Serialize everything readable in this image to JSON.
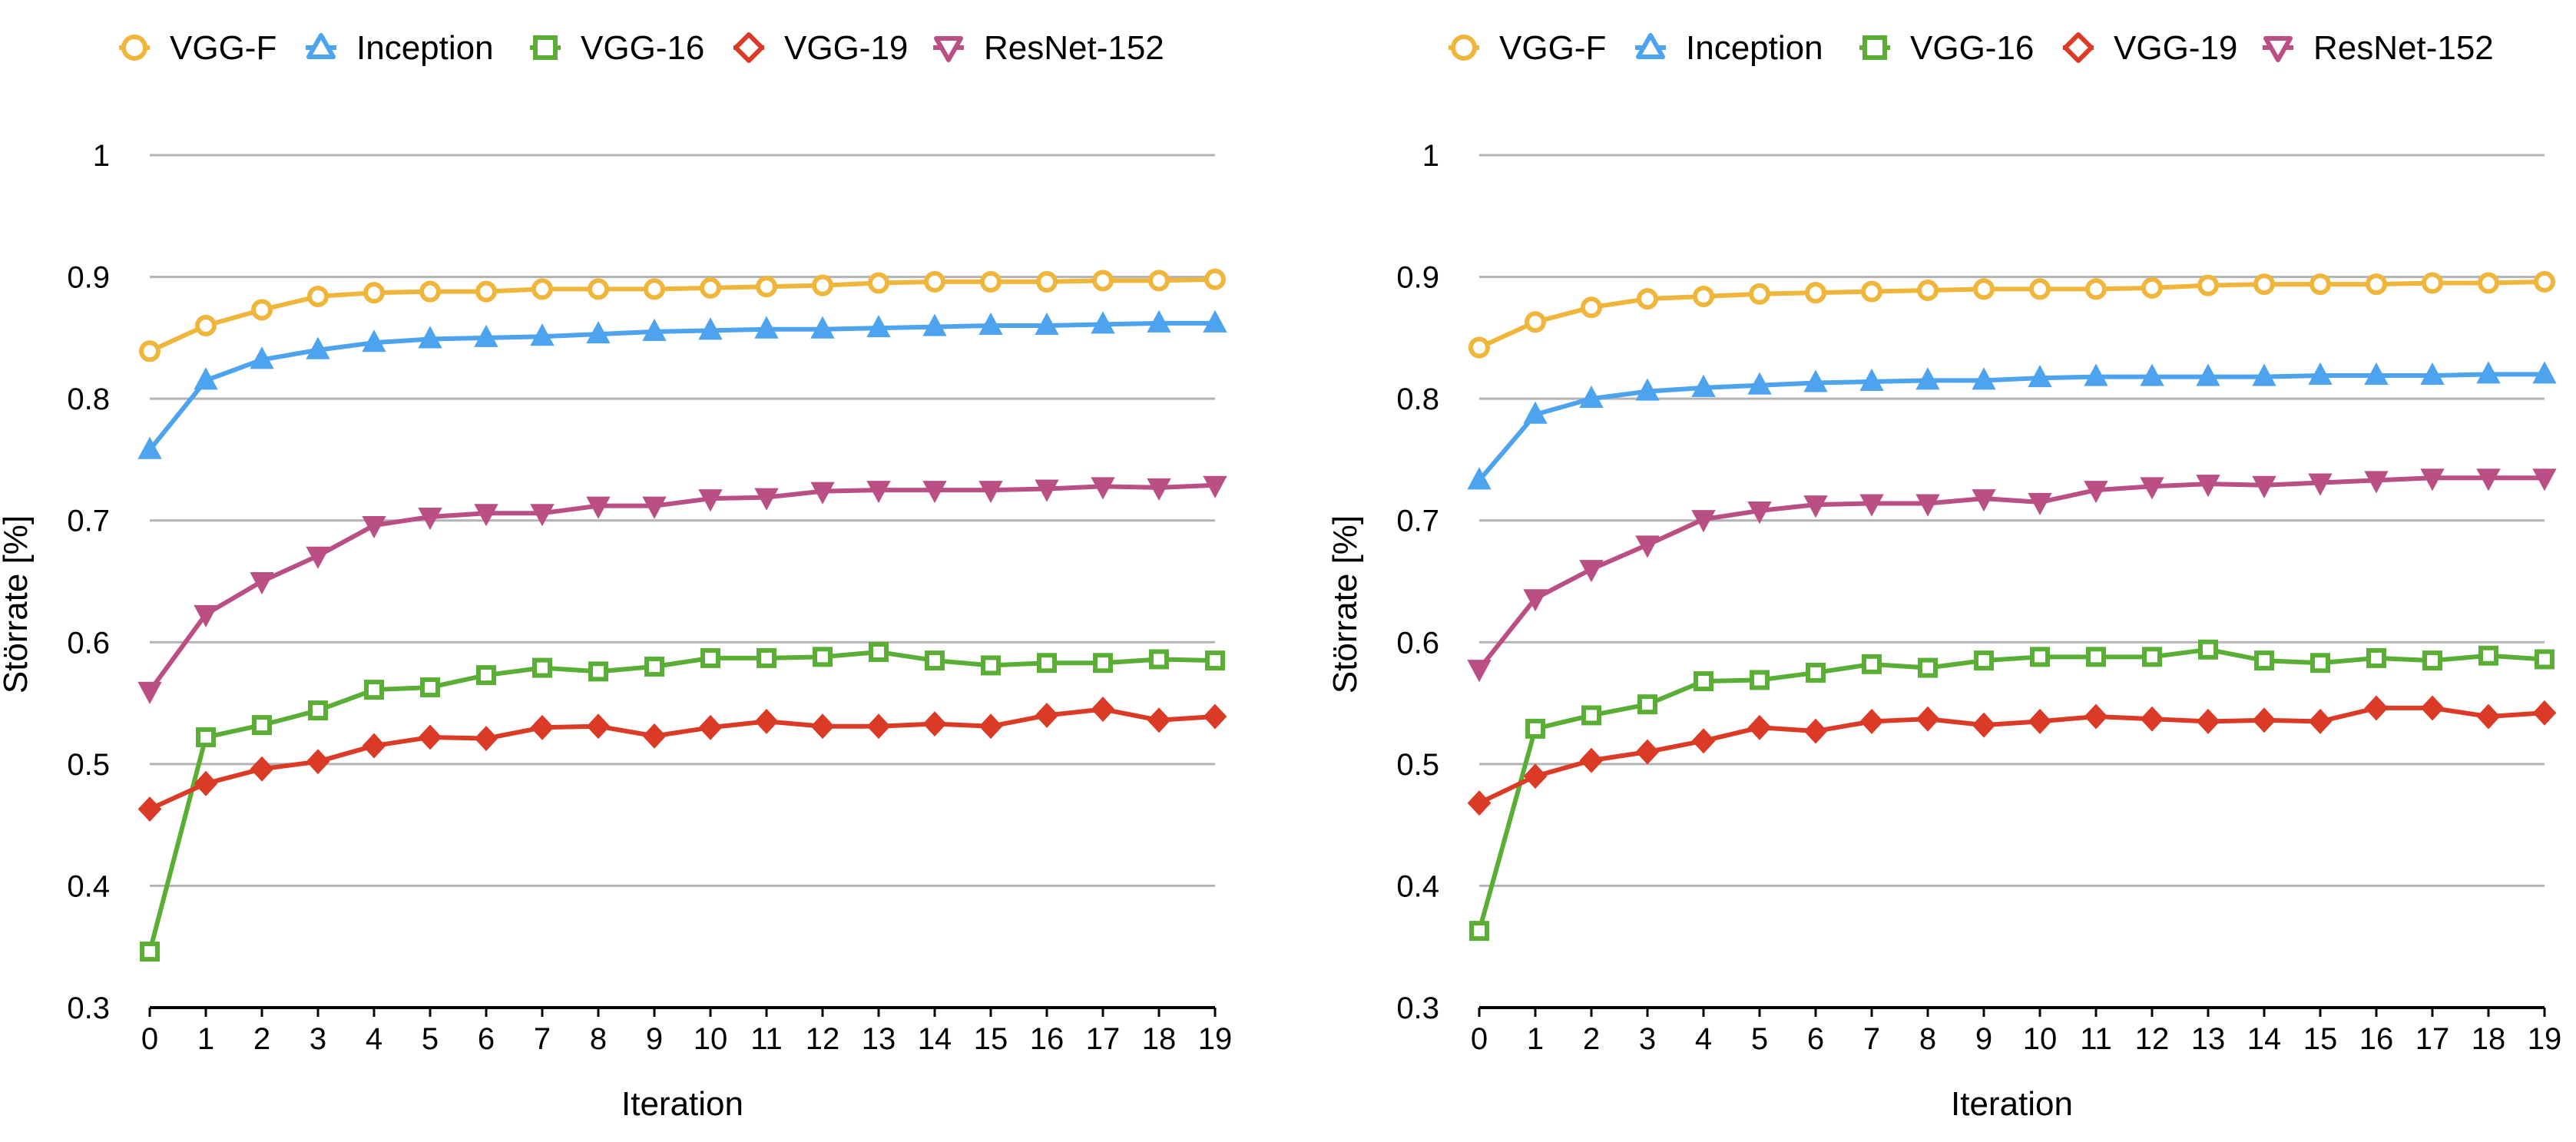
{
  "chart_data": [
    {
      "type": "line",
      "xlabel": "Iteration",
      "ylabel": "Störrate [%]",
      "ylim": [
        0.3,
        1
      ],
      "yticks": [
        "0.3",
        "0.4",
        "0.5",
        "0.6",
        "0.7",
        "0.8",
        "0.9",
        "1"
      ],
      "yticks_values": [
        0.3,
        0.4,
        0.5,
        0.6,
        0.7,
        0.8,
        0.9,
        1.0
      ],
      "x": [
        0,
        1,
        2,
        3,
        4,
        5,
        6,
        7,
        8,
        9,
        10,
        11,
        12,
        13,
        14,
        15,
        16,
        17,
        18,
        19
      ],
      "x_labels": [
        "0",
        "1",
        "2",
        "3",
        "4",
        "5",
        "6",
        "7",
        "8",
        "9",
        "10",
        "11",
        "12",
        "13",
        "14",
        "15",
        "16",
        "17",
        "18",
        "19"
      ],
      "grid": true,
      "legend_position": "top",
      "series": [
        {
          "name": "VGG-F",
          "color": "#F0B53B",
          "marker": "circle",
          "values": [
            0.839,
            0.86,
            0.873,
            0.884,
            0.887,
            0.888,
            0.888,
            0.89,
            0.89,
            0.89,
            0.891,
            0.892,
            0.893,
            0.895,
            0.896,
            0.896,
            0.896,
            0.897,
            0.897,
            0.898
          ]
        },
        {
          "name": "Inception",
          "color": "#4DA3EE",
          "marker": "triangle-up",
          "values": [
            0.758,
            0.815,
            0.832,
            0.84,
            0.846,
            0.849,
            0.85,
            0.851,
            0.853,
            0.855,
            0.856,
            0.857,
            0.857,
            0.858,
            0.859,
            0.86,
            0.86,
            0.861,
            0.862,
            0.862
          ]
        },
        {
          "name": "VGG-16",
          "color": "#5BAE35",
          "marker": "square",
          "values": [
            0.346,
            0.522,
            0.532,
            0.544,
            0.561,
            0.563,
            0.573,
            0.579,
            0.576,
            0.58,
            0.587,
            0.587,
            0.588,
            0.592,
            0.585,
            0.581,
            0.583,
            0.583,
            0.586,
            0.585
          ]
        },
        {
          "name": "VGG-19",
          "color": "#DB3B26",
          "marker": "diamond",
          "values": [
            0.463,
            0.484,
            0.496,
            0.502,
            0.515,
            0.522,
            0.521,
            0.53,
            0.531,
            0.523,
            0.53,
            0.535,
            0.531,
            0.531,
            0.533,
            0.531,
            0.54,
            0.545,
            0.536,
            0.539
          ]
        },
        {
          "name": "ResNet-152",
          "color": "#B94F85",
          "marker": "triangle-down",
          "values": [
            0.56,
            0.623,
            0.65,
            0.671,
            0.696,
            0.703,
            0.706,
            0.706,
            0.712,
            0.712,
            0.718,
            0.719,
            0.724,
            0.725,
            0.725,
            0.725,
            0.726,
            0.728,
            0.727,
            0.729
          ]
        }
      ]
    },
    {
      "type": "line",
      "xlabel": "Iteration",
      "ylabel": "Störrate [%]",
      "ylim": [
        0.3,
        1
      ],
      "yticks": [
        "0.3",
        "0.4",
        "0.5",
        "0.6",
        "0.7",
        "0.8",
        "0.9",
        "1"
      ],
      "yticks_values": [
        0.3,
        0.4,
        0.5,
        0.6,
        0.7,
        0.8,
        0.9,
        1.0
      ],
      "x": [
        0,
        1,
        2,
        3,
        4,
        5,
        6,
        7,
        8,
        9,
        10,
        11,
        12,
        13,
        14,
        15,
        16,
        17,
        18,
        19
      ],
      "x_labels": [
        "0",
        "1",
        "2",
        "3",
        "4",
        "5",
        "6",
        "7",
        "8",
        "9",
        "10",
        "11",
        "12",
        "13",
        "14",
        "15",
        "16",
        "17",
        "18",
        "19"
      ],
      "grid": true,
      "legend_position": "top",
      "series": [
        {
          "name": "VGG-F",
          "color": "#F0B53B",
          "marker": "circle",
          "values": [
            0.842,
            0.863,
            0.875,
            0.882,
            0.884,
            0.886,
            0.887,
            0.888,
            0.889,
            0.89,
            0.89,
            0.89,
            0.891,
            0.893,
            0.894,
            0.894,
            0.894,
            0.895,
            0.895,
            0.896
          ]
        },
        {
          "name": "Inception",
          "color": "#4DA3EE",
          "marker": "triangle-up",
          "values": [
            0.733,
            0.787,
            0.8,
            0.806,
            0.809,
            0.811,
            0.813,
            0.814,
            0.815,
            0.815,
            0.817,
            0.818,
            0.818,
            0.818,
            0.818,
            0.819,
            0.819,
            0.819,
            0.82,
            0.82
          ]
        },
        {
          "name": "VGG-16",
          "color": "#5BAE35",
          "marker": "square",
          "values": [
            0.363,
            0.529,
            0.54,
            0.549,
            0.568,
            0.569,
            0.575,
            0.582,
            0.579,
            0.585,
            0.588,
            0.588,
            0.588,
            0.594,
            0.585,
            0.583,
            0.587,
            0.585,
            0.589,
            0.586
          ]
        },
        {
          "name": "VGG-19",
          "color": "#DB3B26",
          "marker": "diamond",
          "values": [
            0.468,
            0.49,
            0.503,
            0.51,
            0.519,
            0.53,
            0.527,
            0.535,
            0.537,
            0.532,
            0.535,
            0.539,
            0.537,
            0.535,
            0.536,
            0.535,
            0.546,
            0.546,
            0.539,
            0.542
          ]
        },
        {
          "name": "ResNet-152",
          "color": "#B94F85",
          "marker": "triangle-down",
          "values": [
            0.578,
            0.636,
            0.66,
            0.68,
            0.701,
            0.708,
            0.713,
            0.714,
            0.714,
            0.718,
            0.715,
            0.725,
            0.728,
            0.73,
            0.729,
            0.731,
            0.733,
            0.735,
            0.735,
            0.735
          ]
        }
      ]
    }
  ]
}
